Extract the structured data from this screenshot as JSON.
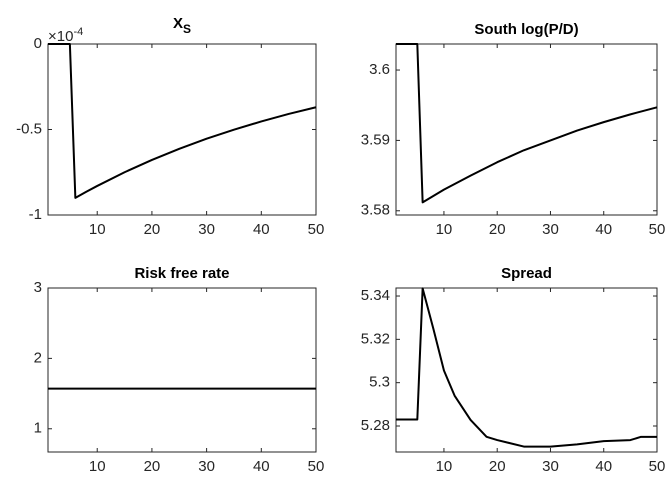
{
  "chart_data": [
    {
      "type": "line",
      "title": "X",
      "title_subscript": "S",
      "y_multiplier": "×10",
      "y_exponent": "-4",
      "x": [
        1,
        5,
        6,
        8,
        10,
        15,
        20,
        25,
        30,
        35,
        40,
        45,
        50
      ],
      "values": [
        0,
        0,
        -0.9,
        -0.864,
        -0.83,
        -0.75,
        -0.678,
        -0.613,
        -0.554,
        -0.501,
        -0.453,
        -0.409,
        -0.37
      ],
      "color": "#000000",
      "xlim": [
        1,
        50
      ],
      "xticks": [
        10,
        20,
        30,
        40,
        50
      ],
      "ylim": [
        -1,
        0
      ],
      "yticks": [
        -1,
        -0.5,
        0
      ]
    },
    {
      "type": "line",
      "title": "South log(P/D)",
      "x": [
        1,
        5,
        6,
        8,
        10,
        15,
        20,
        25,
        30,
        35,
        40,
        45,
        50
      ],
      "values": [
        3.6037,
        3.6037,
        3.5812,
        3.5821,
        3.583,
        3.585,
        3.5869,
        3.5886,
        3.59,
        3.5914,
        3.5926,
        3.5937,
        3.5947
      ],
      "color": "#000000",
      "xlim": [
        1,
        50
      ],
      "xticks": [
        10,
        20,
        30,
        40,
        50
      ],
      "ylim": [
        3.5794,
        3.6037
      ],
      "yticks": [
        3.58,
        3.59,
        3.6
      ]
    },
    {
      "type": "line",
      "title": "Risk free rate",
      "x": [
        1,
        50
      ],
      "values": [
        1.57,
        1.57
      ],
      "color": "#000000",
      "xlim": [
        1,
        50
      ],
      "xticks": [
        10,
        20,
        30,
        40,
        50
      ],
      "ylim": [
        0.67,
        3
      ],
      "yticks": [
        1,
        2,
        3
      ]
    },
    {
      "type": "line",
      "title": "Spread",
      "x": [
        1,
        5,
        6,
        8,
        10,
        12,
        15,
        18,
        20,
        25,
        30,
        35,
        40,
        45,
        47,
        50
      ],
      "values": [
        5.283,
        5.283,
        5.3435,
        5.325,
        5.3056,
        5.294,
        5.2828,
        5.275,
        5.2735,
        5.2705,
        5.2705,
        5.2715,
        5.273,
        5.2735,
        5.275,
        5.275
      ],
      "color": "#000000",
      "xlim": [
        1,
        50
      ],
      "xticks": [
        10,
        20,
        30,
        40,
        50
      ],
      "ylim": [
        5.268,
        5.3437
      ],
      "yticks": [
        5.28,
        5.3,
        5.32,
        5.34
      ]
    }
  ]
}
